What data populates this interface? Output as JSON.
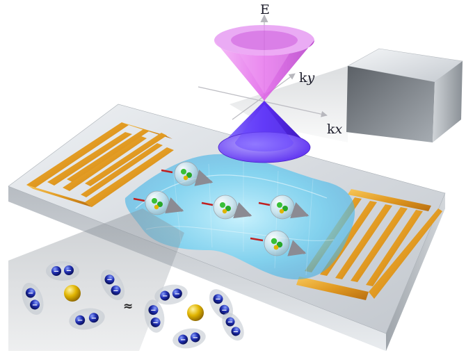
{
  "axes": {
    "energy_label": "E",
    "ky_main": "k",
    "ky_sub": "y",
    "kx_main": "k",
    "kx_sub": "x"
  },
  "approx_symbol": "≈",
  "charge_symbol": "−",
  "colors": {
    "upper_cone": "#e060e8",
    "lower_cone": "#5a2cf0",
    "electrode": "#e0a22a",
    "substrate": "#c9ced3",
    "channel": "#78d4f2",
    "electron": "#1f2eb0",
    "nucleus": "#e0b400"
  },
  "icons": [
    "dirac-cone-icon",
    "interdigitated-electrode-icon",
    "electron-icon",
    "nucleus-icon",
    "exciton-icon",
    "material-cube-icon"
  ]
}
